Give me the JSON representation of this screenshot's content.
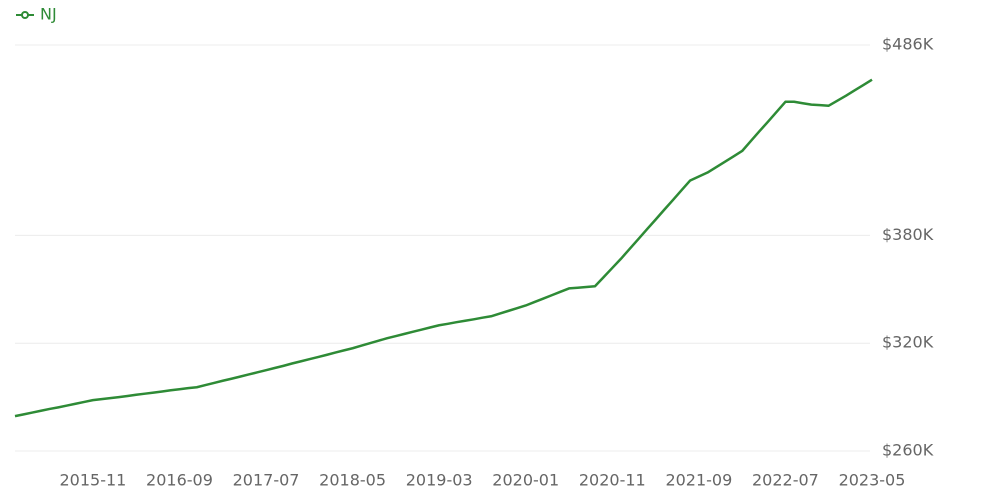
{
  "chart_data": {
    "type": "line",
    "categories": [
      null,
      null,
      null,
      null,
      null,
      null,
      null,
      null,
      null,
      "2015-11",
      null,
      null,
      null,
      null,
      null,
      null,
      null,
      null,
      null,
      "2016-09",
      null,
      null,
      null,
      null,
      null,
      null,
      null,
      null,
      null,
      "2017-07",
      null,
      null,
      null,
      null,
      null,
      null,
      null,
      null,
      null,
      "2018-05",
      null,
      null,
      null,
      null,
      null,
      null,
      null,
      null,
      null,
      "2019-03",
      null,
      null,
      null,
      null,
      null,
      null,
      null,
      null,
      null,
      "2020-01",
      null,
      null,
      null,
      null,
      null,
      null,
      null,
      null,
      null,
      "2020-11",
      null,
      null,
      null,
      null,
      null,
      null,
      null,
      null,
      null,
      "2021-09",
      null,
      null,
      null,
      null,
      null,
      null,
      null,
      null,
      null,
      "2022-07",
      null,
      null,
      null,
      null,
      null,
      null,
      null,
      null,
      null,
      "2023-05"
    ],
    "series": [
      {
        "name": "NJ",
        "color": "#2e8b36",
        "values": [
          279400,
          280400,
          281400,
          282400,
          283400,
          284300,
          285300,
          286300,
          287300,
          288300,
          288900,
          289400,
          290000,
          290600,
          291300,
          291900,
          292500,
          293100,
          293800,
          294400,
          295000,
          295500,
          296700,
          297900,
          299100,
          300200,
          301400,
          302600,
          303800,
          305000,
          306200,
          307400,
          308700,
          309900,
          311100,
          312300,
          313500,
          314800,
          316000,
          317200,
          318600,
          320000,
          321400,
          322800,
          324000,
          325200,
          326400,
          327600,
          328800,
          330000,
          330800,
          331700,
          332500,
          333300,
          334200,
          335000,
          336500,
          338000,
          339500,
          341000,
          342900,
          344800,
          346700,
          348600,
          350500,
          350900,
          351300,
          351700,
          356800,
          361900,
          367000,
          372500,
          377900,
          383400,
          388800,
          394300,
          399700,
          405200,
          410600,
          412800,
          415000,
          418000,
          421000,
          424000,
          427000,
          432500,
          438000,
          443400,
          448900,
          454400,
          454400,
          453600,
          452800,
          452500,
          452200,
          455000,
          457800,
          460800,
          463700,
          466700
        ]
      }
    ],
    "ylim": [
      260000,
      486000
    ],
    "yticks": [
      {
        "value": 260000,
        "label": "$260K"
      },
      {
        "value": 320000,
        "label": "$320K"
      },
      {
        "value": 380000,
        "label": "$380K"
      },
      {
        "value": 486000,
        "label": "$486K"
      }
    ],
    "grid": true
  }
}
